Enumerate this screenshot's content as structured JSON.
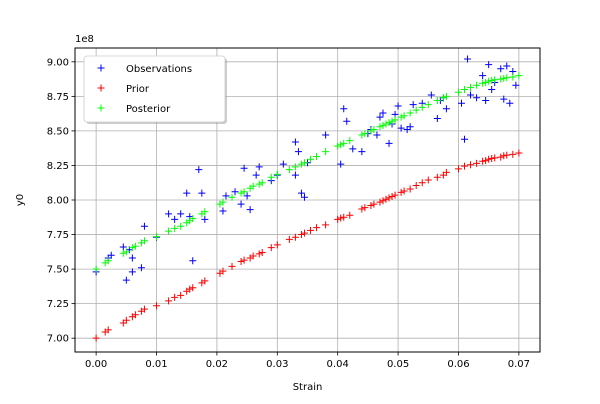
{
  "chart_data": {
    "type": "scatter",
    "title": "",
    "xlabel": "Strain",
    "ylabel": "y0",
    "y_offset_label": "1e8",
    "xlim": [
      -0.0035,
      0.0735
    ],
    "ylim": [
      690000000,
      910000000
    ],
    "x_ticks": [
      0.0,
      0.01,
      0.02,
      0.03,
      0.04,
      0.05,
      0.06,
      0.07
    ],
    "x_tick_labels": [
      "0.00",
      "0.01",
      "0.02",
      "0.03",
      "0.04",
      "0.05",
      "0.06",
      "0.07"
    ],
    "y_ticks": [
      700000000,
      725000000,
      750000000,
      775000000,
      800000000,
      825000000,
      850000000,
      875000000,
      900000000
    ],
    "y_tick_labels": [
      "7.00",
      "7.25",
      "7.50",
      "7.75",
      "8.00",
      "8.25",
      "8.50",
      "8.75",
      "9.00"
    ],
    "grid": true,
    "legend": {
      "position": "top-left"
    },
    "marker": "+",
    "series": [
      {
        "name": "Observations",
        "color": "#0000ff",
        "x": [
          0.0,
          0.002,
          0.0025,
          0.0045,
          0.005,
          0.0055,
          0.006,
          0.006,
          0.0075,
          0.008,
          0.01,
          0.012,
          0.013,
          0.014,
          0.015,
          0.0155,
          0.016,
          0.017,
          0.0175,
          0.018,
          0.021,
          0.0215,
          0.023,
          0.024,
          0.0245,
          0.025,
          0.0255,
          0.0265,
          0.027,
          0.029,
          0.03,
          0.031,
          0.033,
          0.033,
          0.0335,
          0.034,
          0.0345,
          0.035,
          0.038,
          0.0405,
          0.041,
          0.0415,
          0.0425,
          0.044,
          0.045,
          0.0455,
          0.0465,
          0.047,
          0.0475,
          0.0485,
          0.049,
          0.0495,
          0.05,
          0.0505,
          0.0515,
          0.052,
          0.0525,
          0.054,
          0.0555,
          0.0565,
          0.057,
          0.0575,
          0.058,
          0.0605,
          0.061,
          0.0615,
          0.062,
          0.063,
          0.064,
          0.0645,
          0.065,
          0.0655,
          0.066,
          0.067,
          0.0675,
          0.068,
          0.0685,
          0.069,
          0.0695
        ],
        "y": [
          748000000,
          758000000,
          760000000,
          766000000,
          742000000,
          764000000,
          758000000,
          748000000,
          751000000,
          781000000,
          773000000,
          790000000,
          786000000,
          790000000,
          805000000,
          788000000,
          756000000,
          822000000,
          805000000,
          786000000,
          792000000,
          803000000,
          806000000,
          797000000,
          823000000,
          803000000,
          793000000,
          818000000,
          824000000,
          814000000,
          818000000,
          826000000,
          818000000,
          842000000,
          835000000,
          805000000,
          802000000,
          827000000,
          847000000,
          826000000,
          866000000,
          857000000,
          837000000,
          835000000,
          848000000,
          851000000,
          847000000,
          860000000,
          863000000,
          841000000,
          855000000,
          862000000,
          868000000,
          852000000,
          851000000,
          853000000,
          869000000,
          870000000,
          876000000,
          859000000,
          872000000,
          874000000,
          866000000,
          870000000,
          844000000,
          902000000,
          876000000,
          874000000,
          890000000,
          872000000,
          898000000,
          880000000,
          885000000,
          895000000,
          873000000,
          897000000,
          870000000,
          893000000,
          883000000
        ]
      },
      {
        "name": "Prior",
        "color": "#ff0000",
        "x": [
          0.0,
          0.0015,
          0.002,
          0.0045,
          0.005,
          0.006,
          0.0065,
          0.0075,
          0.008,
          0.01,
          0.012,
          0.013,
          0.014,
          0.015,
          0.0155,
          0.016,
          0.0175,
          0.018,
          0.0205,
          0.021,
          0.0225,
          0.024,
          0.0245,
          0.0255,
          0.026,
          0.027,
          0.0275,
          0.029,
          0.03,
          0.032,
          0.033,
          0.034,
          0.0345,
          0.0355,
          0.0365,
          0.038,
          0.04,
          0.0405,
          0.041,
          0.042,
          0.044,
          0.0445,
          0.0455,
          0.046,
          0.047,
          0.0475,
          0.048,
          0.0485,
          0.049,
          0.0495,
          0.0505,
          0.051,
          0.052,
          0.053,
          0.054,
          0.055,
          0.0565,
          0.0575,
          0.058,
          0.06,
          0.061,
          0.062,
          0.063,
          0.064,
          0.0645,
          0.065,
          0.0655,
          0.066,
          0.067,
          0.0675,
          0.068,
          0.069,
          0.07
        ],
        "y": [
          700000000,
          704500000,
          706000000,
          711000000,
          713000000,
          715500000,
          717000000,
          719500000,
          721000000,
          723500000,
          727000000,
          729500000,
          731000000,
          734000000,
          735500000,
          736500000,
          740000000,
          741500000,
          747000000,
          748500000,
          752000000,
          755500000,
          756500000,
          758000000,
          759500000,
          761000000,
          762000000,
          765500000,
          767500000,
          771500000,
          773000000,
          775000000,
          776000000,
          778000000,
          780000000,
          782000000,
          786000000,
          787000000,
          787500000,
          789000000,
          793500000,
          794500000,
          796000000,
          797000000,
          798500000,
          799500000,
          800500000,
          801500000,
          802500000,
          803500000,
          805500000,
          806500000,
          808000000,
          810500000,
          812500000,
          814500000,
          816500000,
          818000000,
          820000000,
          822500000,
          824500000,
          825500000,
          826500000,
          828000000,
          828500000,
          829500000,
          830000000,
          830500000,
          831000000,
          832000000,
          832500000,
          833000000,
          834000000
        ]
      },
      {
        "name": "Posterior",
        "color": "#00ff00",
        "x": [
          0.0,
          0.0015,
          0.002,
          0.0045,
          0.005,
          0.006,
          0.0065,
          0.0075,
          0.008,
          0.01,
          0.012,
          0.013,
          0.014,
          0.015,
          0.0155,
          0.016,
          0.0175,
          0.018,
          0.0205,
          0.021,
          0.0225,
          0.024,
          0.0245,
          0.0255,
          0.026,
          0.027,
          0.0275,
          0.029,
          0.03,
          0.032,
          0.033,
          0.034,
          0.0345,
          0.0355,
          0.0365,
          0.038,
          0.04,
          0.0405,
          0.041,
          0.042,
          0.044,
          0.0445,
          0.0455,
          0.046,
          0.047,
          0.0475,
          0.048,
          0.0485,
          0.049,
          0.0495,
          0.0505,
          0.051,
          0.052,
          0.053,
          0.054,
          0.055,
          0.0565,
          0.0575,
          0.058,
          0.06,
          0.061,
          0.062,
          0.063,
          0.064,
          0.0645,
          0.065,
          0.0655,
          0.066,
          0.067,
          0.0675,
          0.068,
          0.069,
          0.07
        ],
        "y": [
          750000000,
          754500000,
          756000000,
          761500000,
          762500000,
          765500000,
          766500000,
          769000000,
          770500000,
          773500000,
          777500000,
          779500000,
          781000000,
          783500000,
          785000000,
          786500000,
          790000000,
          791500000,
          797000000,
          798500000,
          802000000,
          805000000,
          806000000,
          808500000,
          810000000,
          811500000,
          812500000,
          816500000,
          818500000,
          822000000,
          824000000,
          826000000,
          827000000,
          829500000,
          831500000,
          835000000,
          839000000,
          840000000,
          841000000,
          843000000,
          847000000,
          848000000,
          850000000,
          851000000,
          853000000,
          854000000,
          855000000,
          856000000,
          857000000,
          858000000,
          860000000,
          861000000,
          863000000,
          865000000,
          867000000,
          869000000,
          872000000,
          874000000,
          875000000,
          878000000,
          880000000,
          881500000,
          883000000,
          884500000,
          885000000,
          886000000,
          886500000,
          887000000,
          887500000,
          888000000,
          888500000,
          889000000,
          890000000
        ]
      }
    ]
  }
}
